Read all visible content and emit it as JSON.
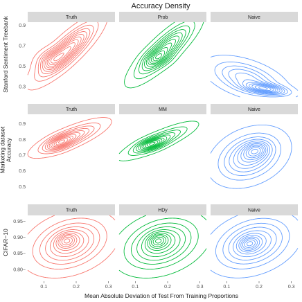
{
  "chart_data": {
    "type": "contour",
    "title": "Accuracy Density",
    "xlabel": "Mean Absolute Deviation of Test From Training Proportions",
    "x_ticks": [
      0.1,
      0.2,
      0.3
    ],
    "x_tick_labels": [
      "0.1",
      "0.2",
      "0.3"
    ],
    "xlim": [
      0.05,
      0.32
    ],
    "colors": {
      "Truth": "#F8766D",
      "Estimator": "#00BA38",
      "Naive": "#619CFF"
    },
    "rows": [
      {
        "ylabel": [
          "Stanford Sentiment Treebank"
        ],
        "ylim": [
          0.2,
          0.93
        ],
        "y_ticks": [
          0.3,
          0.5,
          0.7,
          0.9
        ],
        "y_tick_labels": [
          "0.3",
          "0.5",
          "0.7",
          "0.9"
        ],
        "panels": [
          {
            "label": "Truth",
            "color_key": "Truth",
            "modes": [
              {
                "cx": 0.17,
                "cy": 0.65,
                "sx": 0.05,
                "sy": 0.15,
                "rho": 0.85,
                "w": 1.0
              },
              {
                "cx": 0.12,
                "cy": 0.57,
                "sx": 0.025,
                "sy": 0.06,
                "rho": 0.3,
                "w": 0.4
              }
            ]
          },
          {
            "label": "Prob",
            "color_key": "Estimator",
            "modes": [
              {
                "cx": 0.19,
                "cy": 0.66,
                "sx": 0.05,
                "sy": 0.15,
                "rho": 0.85,
                "w": 1.0
              },
              {
                "cx": 0.17,
                "cy": 0.58,
                "sx": 0.025,
                "sy": 0.05,
                "rho": 0.3,
                "w": 0.45
              }
            ]
          },
          {
            "label": "Naive",
            "color_key": "Naive",
            "modes": [
              {
                "cx": 0.16,
                "cy": 0.38,
                "sx": 0.06,
                "sy": 0.1,
                "rho": -0.5,
                "w": 1.0
              },
              {
                "cx": 0.22,
                "cy": 0.28,
                "sx": 0.04,
                "sy": 0.035,
                "rho": -0.5,
                "w": 1.6
              }
            ]
          }
        ]
      },
      {
        "ylabel": [
          "Marketing dataset",
          "Accuracy"
        ],
        "ylim": [
          0.44,
          0.96
        ],
        "y_ticks": [
          0.5,
          0.6,
          0.7,
          0.8,
          0.9
        ],
        "y_tick_labels": [
          "0.5",
          "0.6",
          "0.7",
          "0.8",
          "0.9"
        ],
        "panels": [
          {
            "label": "Truth",
            "color_key": "Truth",
            "modes": [
              {
                "cx": 0.18,
                "cy": 0.81,
                "sx": 0.055,
                "sy": 0.055,
                "rho": 0.8,
                "w": 1.0
              },
              {
                "cx": 0.15,
                "cy": 0.78,
                "sx": 0.025,
                "sy": 0.03,
                "rho": 0.5,
                "w": 0.9
              }
            ]
          },
          {
            "label": "MM",
            "color_key": "Estimator",
            "modes": [
              {
                "cx": 0.17,
                "cy": 0.79,
                "sx": 0.055,
                "sy": 0.055,
                "rho": 0.85,
                "w": 1.0
              },
              {
                "cx": 0.15,
                "cy": 0.77,
                "sx": 0.025,
                "sy": 0.025,
                "rho": 0.5,
                "w": 1.1
              }
            ]
          },
          {
            "label": "Naive",
            "color_key": "Naive",
            "modes": [
              {
                "cx": 0.17,
                "cy": 0.69,
                "sx": 0.055,
                "sy": 0.085,
                "rho": 0.3,
                "w": 1.0
              },
              {
                "cx": 0.19,
                "cy": 0.73,
                "sx": 0.025,
                "sy": 0.035,
                "rho": 0.2,
                "w": 0.8
              }
            ]
          }
        ]
      },
      {
        "ylabel": [
          "CIFAR−10"
        ],
        "ylim": [
          0.765,
          0.968
        ],
        "y_ticks": [
          0.8,
          0.85,
          0.9,
          0.95
        ],
        "y_tick_labels": [
          "0.80−",
          "0.85−",
          "0.90−",
          "0.95−"
        ],
        "panels": [
          {
            "label": "Truth",
            "color_key": "Truth",
            "modes": [
              {
                "cx": 0.18,
                "cy": 0.88,
                "sx": 0.065,
                "sy": 0.045,
                "rho": 0.3,
                "w": 1.0
              },
              {
                "cx": 0.17,
                "cy": 0.89,
                "sx": 0.02,
                "sy": 0.015,
                "rho": 0.2,
                "w": 0.7
              }
            ]
          },
          {
            "label": "HDy",
            "color_key": "Estimator",
            "modes": [
              {
                "cx": 0.18,
                "cy": 0.88,
                "sx": 0.065,
                "sy": 0.045,
                "rho": 0.3,
                "w": 1.0
              },
              {
                "cx": 0.17,
                "cy": 0.89,
                "sx": 0.02,
                "sy": 0.015,
                "rho": 0.2,
                "w": 0.7
              }
            ]
          },
          {
            "label": "Naive",
            "color_key": "Naive",
            "modes": [
              {
                "cx": 0.18,
                "cy": 0.88,
                "sx": 0.065,
                "sy": 0.045,
                "rho": 0.3,
                "w": 1.0
              },
              {
                "cx": 0.17,
                "cy": 0.88,
                "sx": 0.02,
                "sy": 0.015,
                "rho": 0.2,
                "w": 0.7
              }
            ]
          }
        ]
      }
    ]
  }
}
